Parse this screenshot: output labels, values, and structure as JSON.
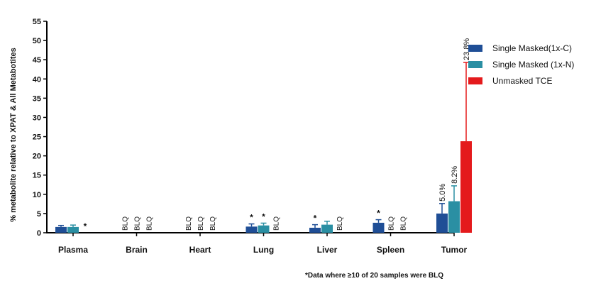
{
  "chart_data": {
    "type": "bar",
    "ylabel": "% metabolite relative to XPAT & All  Metabotites",
    "xlabel": "",
    "ylim": [
      0,
      55
    ],
    "yticks": [
      0,
      5,
      10,
      15,
      20,
      25,
      30,
      35,
      40,
      45,
      50,
      55
    ],
    "ytick_labels": [
      "0",
      "5",
      "10",
      "15",
      "20",
      "25",
      "30",
      "35",
      "40",
      "45",
      "50",
      "55"
    ],
    "categories": [
      "Plasma",
      "Brain",
      "Heart",
      "Lung",
      "Liver",
      "Spleen",
      "Tumor"
    ],
    "grid": false,
    "legend_position": "right",
    "series": [
      {
        "name": "Single Masked(1x-C)",
        "color": "#1f4e96",
        "values": [
          1.5,
          null,
          null,
          1.6,
          1.3,
          2.6,
          5.0
        ],
        "errors": [
          0.4,
          null,
          null,
          0.7,
          0.8,
          0.8,
          2.6
        ],
        "annotations": [
          "",
          "BLQ",
          "BLQ",
          "*",
          "*",
          "*",
          "5.0%"
        ]
      },
      {
        "name": "Single Masked (1x-N)",
        "color": "#2a8fa3",
        "values": [
          1.5,
          null,
          null,
          1.9,
          2.1,
          null,
          8.2
        ],
        "errors": [
          0.5,
          null,
          null,
          0.6,
          0.9,
          null,
          4.0
        ],
        "annotations": [
          "",
          "BLQ",
          "BLQ",
          "*",
          "",
          "BLQ",
          "8.2%"
        ]
      },
      {
        "name": "Unmasked TCE",
        "color": "#e41a1c",
        "values": [
          null,
          null,
          null,
          null,
          null,
          null,
          23.8
        ],
        "errors": [
          null,
          null,
          null,
          null,
          null,
          null,
          20.5
        ],
        "annotations": [
          "*",
          "BLQ",
          "BLQ",
          "BLQ",
          "BLQ",
          "BLQ",
          "23.8%"
        ]
      }
    ],
    "footnote": "*Data where ≥10 of 20 samples were BLQ"
  }
}
